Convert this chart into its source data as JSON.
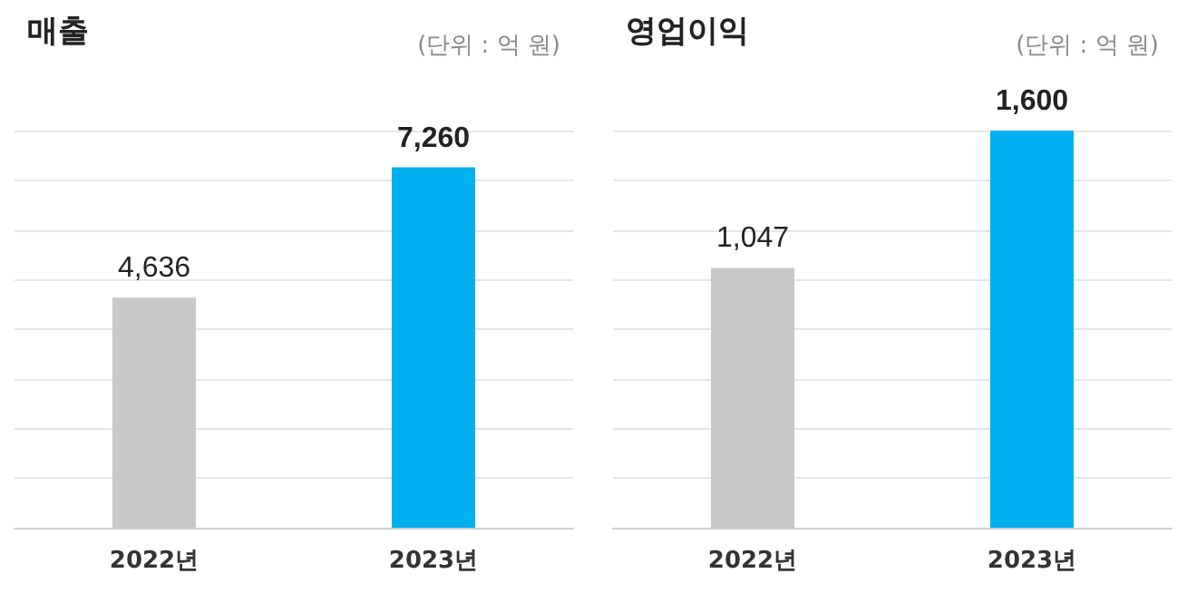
{
  "chart_data": [
    {
      "type": "bar",
      "title": "매출",
      "annotations": [
        "(단위 : 억 원)"
      ],
      "categories": [
        "2022년",
        "2023년"
      ],
      "values": [
        4636,
        7260
      ],
      "value_labels": [
        "4,636",
        "7,260"
      ],
      "colors": [
        "#c8c8c8",
        "#00b0f0"
      ],
      "grid": "y",
      "tick_labels": "x"
    },
    {
      "type": "bar",
      "title": "영업이익",
      "annotations": [
        "(단위 : 억 원)"
      ],
      "categories": [
        "2022년",
        "2023년"
      ],
      "values": [
        1047,
        1600
      ],
      "value_labels": [
        "1,047",
        "1,600"
      ],
      "colors": [
        "#c8c8c8",
        "#00b0f0"
      ],
      "grid": "y",
      "tick_labels": "x"
    }
  ]
}
